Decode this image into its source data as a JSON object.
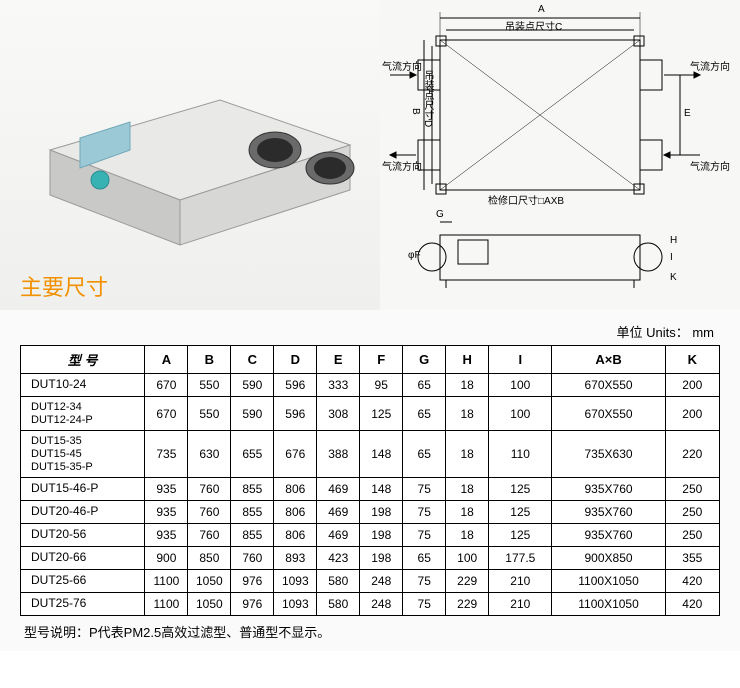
{
  "section_title": "主要尺寸",
  "units_label": "单位 Units： mm",
  "diagram": {
    "dim_a": "A",
    "dim_b": "B",
    "dim_c": "吊装点尺寸C",
    "dim_d": "吊装点尺寸D",
    "dim_e": "E",
    "dim_f": "φF",
    "dim_g": "G",
    "dim_h": "H",
    "dim_i": "I",
    "dim_k": "K",
    "service": "检修口尺寸□AXB",
    "airflow": "气流方向"
  },
  "table": {
    "headers": [
      "型 号",
      "A",
      "B",
      "C",
      "D",
      "E",
      "F",
      "G",
      "H",
      "I",
      "A×B",
      "K"
    ],
    "rows": [
      {
        "model": "DUT10-24",
        "A": "670",
        "B": "550",
        "C": "590",
        "D": "596",
        "E": "333",
        "F": "95",
        "G": "65",
        "H": "18",
        "I": "100",
        "AxB": "670X550",
        "K": "200"
      },
      {
        "model": "DUT12-34\nDUT12-24-P",
        "A": "670",
        "B": "550",
        "C": "590",
        "D": "596",
        "E": "308",
        "F": "125",
        "G": "65",
        "H": "18",
        "I": "100",
        "AxB": "670X550",
        "K": "200"
      },
      {
        "model": "DUT15-35\nDUT15-45\nDUT15-35-P",
        "A": "735",
        "B": "630",
        "C": "655",
        "D": "676",
        "E": "388",
        "F": "148",
        "G": "65",
        "H": "18",
        "I": "110",
        "AxB": "735X630",
        "K": "220"
      },
      {
        "model": "DUT15-46-P",
        "A": "935",
        "B": "760",
        "C": "855",
        "D": "806",
        "E": "469",
        "F": "148",
        "G": "75",
        "H": "18",
        "I": "125",
        "AxB": "935X760",
        "K": "250"
      },
      {
        "model": "DUT20-46-P",
        "A": "935",
        "B": "760",
        "C": "855",
        "D": "806",
        "E": "469",
        "F": "198",
        "G": "75",
        "H": "18",
        "I": "125",
        "AxB": "935X760",
        "K": "250"
      },
      {
        "model": "DUT20-56",
        "A": "935",
        "B": "760",
        "C": "855",
        "D": "806",
        "E": "469",
        "F": "198",
        "G": "75",
        "H": "18",
        "I": "125",
        "AxB": "935X760",
        "K": "250"
      },
      {
        "model": "DUT20-66",
        "A": "900",
        "B": "850",
        "C": "760",
        "D": "893",
        "E": "423",
        "F": "198",
        "G": "65",
        "H": "100",
        "I": "177.5",
        "AxB": "900X850",
        "K": "355"
      },
      {
        "model": "DUT25-66",
        "A": "1100",
        "B": "1050",
        "C": "976",
        "D": "1093",
        "E": "580",
        "F": "248",
        "G": "75",
        "H": "229",
        "I": "210",
        "AxB": "1100X1050",
        "K": "420"
      },
      {
        "model": "DUT25-76",
        "A": "1100",
        "B": "1050",
        "C": "976",
        "D": "1093",
        "E": "580",
        "F": "248",
        "G": "75",
        "H": "229",
        "I": "210",
        "AxB": "1100X1050",
        "K": "420"
      }
    ]
  },
  "footnote": "型号说明：P代表PM2.5高效过滤型、普通型不显示。",
  "colors": {
    "accent": "#f29100",
    "panel_bg": "#f7f7f5",
    "border": "#000000"
  }
}
